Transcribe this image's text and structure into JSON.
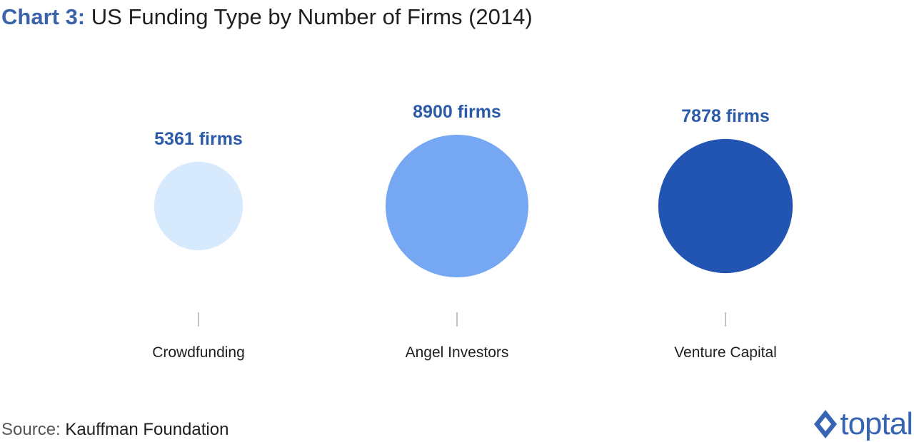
{
  "title": {
    "prefix": "Chart 3:",
    "text": "US Funding Type by Number of Firms (2014)"
  },
  "source": {
    "label": "Source:",
    "value": "Kauffman Foundation"
  },
  "logo": {
    "text": "toptal",
    "icon": "toptal-diamond-icon",
    "color": "#3864b4"
  },
  "chart_data": {
    "type": "bubble",
    "title": "US Funding Type by Number of Firms (2014)",
    "unit": "firms",
    "categories": [
      "Crowdfunding",
      "Angel Investors",
      "Venture Capital"
    ],
    "values": [
      5361,
      8900,
      7878
    ],
    "value_labels": [
      "5361 firms",
      "8900 firms",
      "7878 firms"
    ],
    "colors": [
      "#d7e9fd",
      "#76a7f2",
      "#2155b1"
    ],
    "label_color": "#2a5aa8",
    "grid": false,
    "legend": "none"
  }
}
